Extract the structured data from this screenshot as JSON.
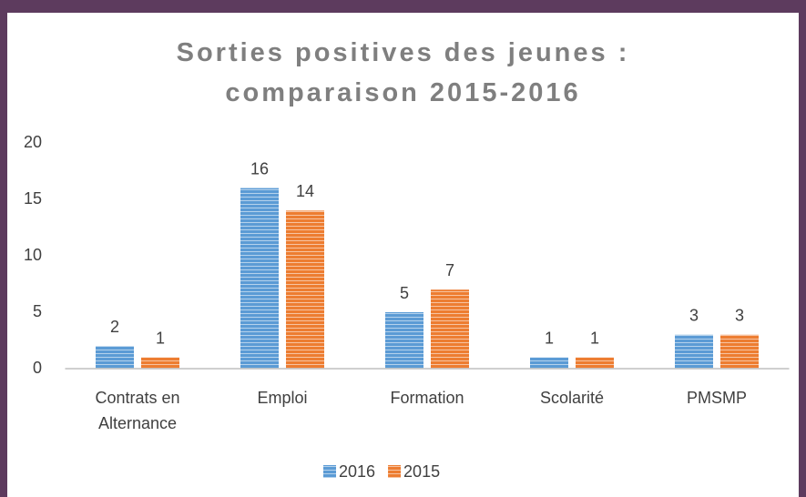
{
  "chart_data": {
    "type": "bar",
    "title": "Sorties positives des jeunes : comparaison 2015-2016",
    "categories": [
      "Contrats en Alternance",
      "Emploi",
      "Formation",
      "Scolarité",
      "PMSMP"
    ],
    "series": [
      {
        "name": "2016",
        "color": "#5b9bd5",
        "values": [
          2,
          16,
          5,
          1,
          3
        ]
      },
      {
        "name": "2015",
        "color": "#ed7d31",
        "values": [
          1,
          14,
          7,
          1,
          3
        ]
      }
    ],
    "ylim": [
      0,
      20
    ],
    "yticks": [
      0,
      5,
      10,
      15,
      20
    ],
    "grid": false,
    "legend": "bottom"
  }
}
